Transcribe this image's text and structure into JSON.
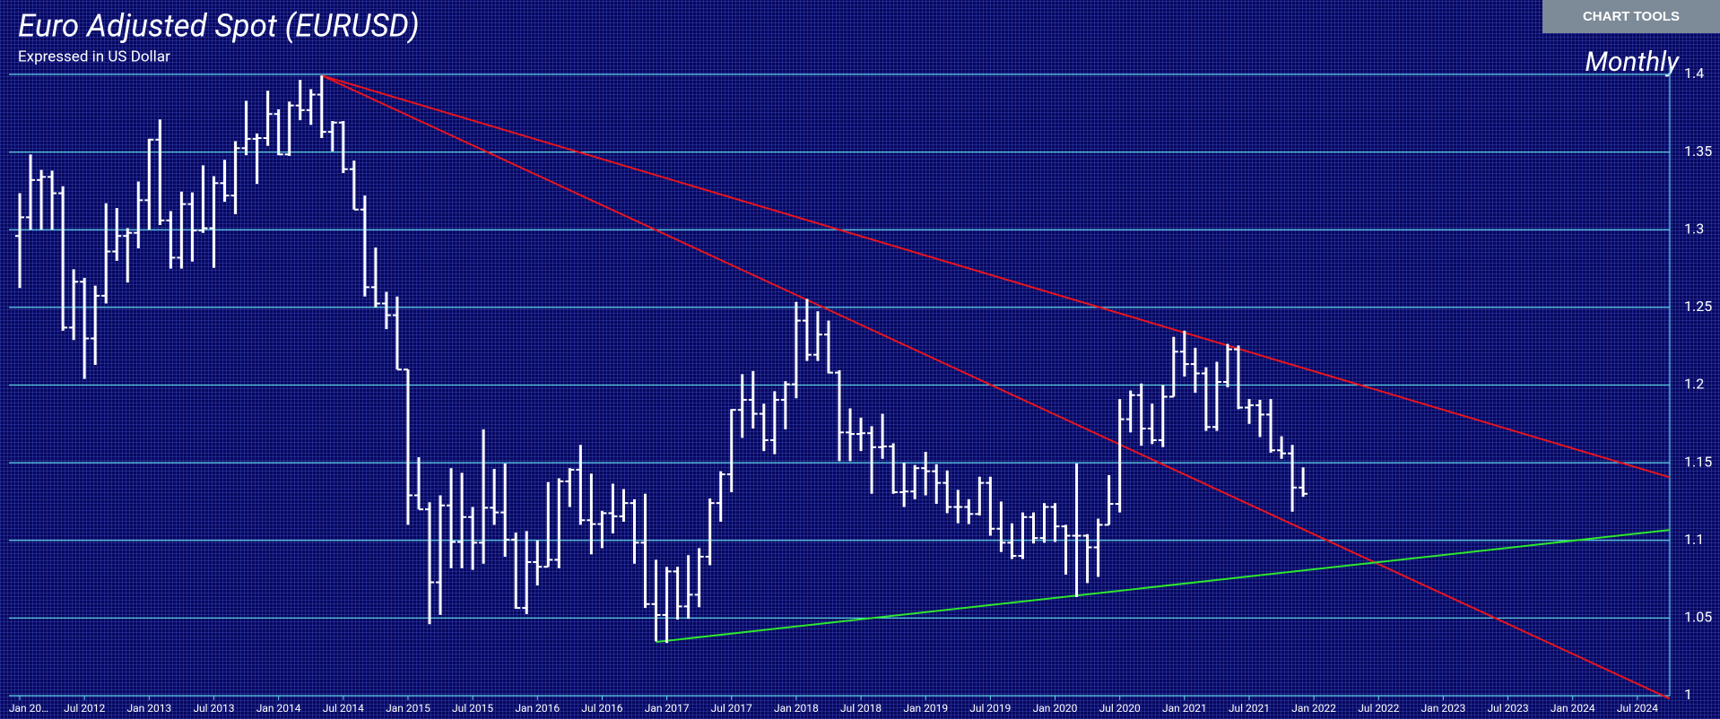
{
  "chart_data": {
    "type": "ohlc",
    "title": "Euro Adjusted Spot (EURUSD)",
    "subtitle": "Expressed in US Dollar",
    "period": "Monthly",
    "color": "#ffffff",
    "grid": true,
    "grid_color": "#5fd3e6",
    "x": [
      "Jan 2012",
      "Feb 2012",
      "Mar 2012",
      "Apr 2012",
      "May 2012",
      "Jun 2012",
      "Jul 2012",
      "Aug 2012",
      "Sep 2012",
      "Oct 2012",
      "Nov 2012",
      "Dec 2012",
      "Jan 2013",
      "Feb 2013",
      "Mar 2013",
      "Apr 2013",
      "May 2013",
      "Jun 2013",
      "Jul 2013",
      "Aug 2013",
      "Sep 2013",
      "Oct 2013",
      "Nov 2013",
      "Dec 2013",
      "Jan 2014",
      "Feb 2014",
      "Mar 2014",
      "Apr 2014",
      "May 2014",
      "Jun 2014",
      "Jul 2014",
      "Aug 2014",
      "Sep 2014",
      "Oct 2014",
      "Nov 2014",
      "Dec 2014",
      "Jan 2015",
      "Feb 2015",
      "Mar 2015",
      "Apr 2015",
      "May 2015",
      "Jun 2015",
      "Jul 2015",
      "Aug 2015",
      "Sep 2015",
      "Oct 2015",
      "Nov 2015",
      "Dec 2015",
      "Jan 2016",
      "Feb 2016",
      "Mar 2016",
      "Apr 2016",
      "May 2016",
      "Jun 2016",
      "Jul 2016",
      "Aug 2016",
      "Sep 2016",
      "Oct 2016",
      "Nov 2016",
      "Dec 2016",
      "Jan 2017",
      "Feb 2017",
      "Mar 2017",
      "Apr 2017",
      "May 2017",
      "Jun 2017",
      "Jul 2017",
      "Aug 2017",
      "Sep 2017",
      "Oct 2017",
      "Nov 2017",
      "Dec 2017",
      "Jan 2018",
      "Feb 2018",
      "Mar 2018",
      "Apr 2018",
      "May 2018",
      "Jun 2018",
      "Jul 2018",
      "Aug 2018",
      "Sep 2018",
      "Oct 2018",
      "Nov 2018",
      "Dec 2018",
      "Jan 2019",
      "Feb 2019",
      "Mar 2019",
      "Apr 2019",
      "May 2019",
      "Jun 2019",
      "Jul 2019",
      "Aug 2019",
      "Sep 2019",
      "Oct 2019",
      "Nov 2019",
      "Dec 2019",
      "Jan 2020",
      "Feb 2020",
      "Mar 2020",
      "Apr 2020",
      "May 2020",
      "Jun 2020",
      "Jul 2020",
      "Aug 2020",
      "Sep 2020",
      "Oct 2020",
      "Nov 2020",
      "Dec 2020",
      "Jan 2021",
      "Feb 2021",
      "Mar 2021",
      "Apr 2021",
      "May 2021",
      "Jun 2021",
      "Jul 2021",
      "Aug 2021",
      "Sep 2021",
      "Oct 2021",
      "Nov 2021",
      "Dec 2021"
    ],
    "open": [
      1.296,
      1.308,
      1.332,
      1.334,
      1.3235,
      1.237,
      1.2665,
      1.23,
      1.2575,
      1.286,
      1.296,
      1.298,
      1.319,
      1.358,
      1.306,
      1.282,
      1.3165,
      1.2995,
      1.301,
      1.33,
      1.322,
      1.3525,
      1.3585,
      1.359,
      1.3745,
      1.3485,
      1.38,
      1.377,
      1.387,
      1.363,
      1.369,
      1.339,
      1.313,
      1.263,
      1.2525,
      1.245,
      1.21,
      1.129,
      1.12,
      1.073,
      1.1225,
      1.099,
      1.115,
      1.0985,
      1.121,
      1.118,
      1.1005,
      1.0565,
      1.086,
      1.083,
      1.0875,
      1.138,
      1.1455,
      1.113,
      1.1105,
      1.1175,
      1.1155,
      1.124,
      1.0985,
      1.059,
      1.052,
      1.08,
      1.0575,
      1.065,
      1.0895,
      1.124,
      1.1425,
      1.184,
      1.1905,
      1.1815,
      1.1645,
      1.1905,
      1.2005,
      1.2415,
      1.2195,
      1.2325,
      1.208,
      1.1695,
      1.1685,
      1.169,
      1.16,
      1.1605,
      1.131,
      1.1315,
      1.1465,
      1.1445,
      1.137,
      1.1215,
      1.1215,
      1.117,
      1.137,
      1.1075,
      1.0985,
      1.09,
      1.115,
      1.1015,
      1.1215,
      1.109,
      1.103,
      1.103,
      1.0955,
      1.11,
      1.1235,
      1.178,
      1.1935,
      1.172,
      1.1645,
      1.1925,
      1.2215,
      1.2135,
      1.2075,
      1.173,
      1.202,
      1.223,
      1.1855,
      1.187,
      1.181,
      1.158,
      1.156,
      1.134
    ],
    "high": [
      1.3235,
      1.3485,
      1.3385,
      1.338,
      1.328,
      1.2745,
      1.269,
      1.264,
      1.317,
      1.314,
      1.301,
      1.331,
      1.3585,
      1.371,
      1.312,
      1.3245,
      1.324,
      1.3415,
      1.3345,
      1.345,
      1.357,
      1.383,
      1.362,
      1.3895,
      1.3775,
      1.3825,
      1.3965,
      1.3905,
      1.3993,
      1.37,
      1.37,
      1.3445,
      1.322,
      1.2885,
      1.26,
      1.257,
      1.21,
      1.1535,
      1.1245,
      1.129,
      1.1465,
      1.1435,
      1.1215,
      1.1715,
      1.146,
      1.1495,
      1.105,
      1.106,
      1.1,
      1.1375,
      1.14,
      1.1465,
      1.1615,
      1.143,
      1.119,
      1.1365,
      1.133,
      1.1265,
      1.13,
      1.0875,
      1.083,
      1.083,
      1.0905,
      1.095,
      1.127,
      1.1445,
      1.1845,
      1.207,
      1.209,
      1.188,
      1.196,
      1.2025,
      1.2535,
      1.2555,
      1.2475,
      1.2415,
      1.2095,
      1.185,
      1.179,
      1.1735,
      1.1815,
      1.1625,
      1.15,
      1.1485,
      1.157,
      1.149,
      1.145,
      1.1325,
      1.1265,
      1.141,
      1.141,
      1.125,
      1.111,
      1.118,
      1.118,
      1.124,
      1.124,
      1.11,
      1.1495,
      1.104,
      1.114,
      1.142,
      1.191,
      1.1965,
      1.201,
      1.188,
      1.2,
      1.231,
      1.235,
      1.224,
      1.2115,
      1.215,
      1.2265,
      1.2255,
      1.191,
      1.1905,
      1.191,
      1.167,
      1.1615,
      1.147
    ],
    "low": [
      1.2625,
      1.3,
      1.3,
      1.3,
      1.235,
      1.229,
      1.204,
      1.213,
      1.2525,
      1.28,
      1.266,
      1.288,
      1.3,
      1.303,
      1.275,
      1.275,
      1.2795,
      1.298,
      1.2755,
      1.318,
      1.31,
      1.348,
      1.3295,
      1.354,
      1.348,
      1.3475,
      1.3705,
      1.3675,
      1.359,
      1.3505,
      1.3365,
      1.313,
      1.257,
      1.25,
      1.236,
      1.21,
      1.11,
      1.12,
      1.046,
      1.052,
      1.082,
      1.082,
      1.081,
      1.085,
      1.11,
      1.0895,
      1.056,
      1.0525,
      1.071,
      1.083,
      1.082,
      1.1215,
      1.11,
      1.091,
      1.095,
      1.1045,
      1.112,
      1.085,
      1.0565,
      1.035,
      1.034,
      1.049,
      1.0495,
      1.057,
      1.084,
      1.112,
      1.131,
      1.166,
      1.172,
      1.1575,
      1.1555,
      1.1715,
      1.1915,
      1.2155,
      1.2155,
      1.2075,
      1.151,
      1.151,
      1.1575,
      1.13,
      1.1525,
      1.13,
      1.1215,
      1.1265,
      1.129,
      1.1235,
      1.1175,
      1.111,
      1.1105,
      1.116,
      1.103,
      1.0925,
      1.088,
      1.088,
      1.098,
      1.0985,
      1.099,
      1.078,
      1.0635,
      1.0725,
      1.0765,
      1.11,
      1.118,
      1.1695,
      1.161,
      1.162,
      1.16,
      1.1925,
      1.2055,
      1.195,
      1.1705,
      1.1705,
      1.1985,
      1.1845,
      1.175,
      1.1665,
      1.1565,
      1.1525,
      1.1185,
      1.128
    ],
    "close": [
      1.308,
      1.332,
      1.334,
      1.3235,
      1.237,
      1.2665,
      1.23,
      1.2575,
      1.286,
      1.296,
      1.298,
      1.319,
      1.358,
      1.306,
      1.282,
      1.3165,
      1.2995,
      1.301,
      1.33,
      1.322,
      1.3525,
      1.3585,
      1.359,
      1.3745,
      1.3485,
      1.38,
      1.377,
      1.387,
      1.363,
      1.369,
      1.339,
      1.313,
      1.263,
      1.2525,
      1.245,
      1.21,
      1.129,
      1.12,
      1.073,
      1.1225,
      1.099,
      1.115,
      1.0985,
      1.121,
      1.118,
      1.1005,
      1.0565,
      1.086,
      1.083,
      1.0875,
      1.138,
      1.1455,
      1.113,
      1.1105,
      1.1175,
      1.1155,
      1.124,
      1.0985,
      1.059,
      1.052,
      1.08,
      1.0575,
      1.065,
      1.0895,
      1.124,
      1.1425,
      1.184,
      1.1905,
      1.1815,
      1.1645,
      1.1905,
      1.2005,
      1.2415,
      1.2195,
      1.2325,
      1.208,
      1.1695,
      1.1685,
      1.169,
      1.16,
      1.1605,
      1.131,
      1.1315,
      1.1465,
      1.1445,
      1.137,
      1.1215,
      1.1215,
      1.117,
      1.137,
      1.1075,
      1.0985,
      1.09,
      1.115,
      1.1015,
      1.1215,
      1.109,
      1.103,
      1.103,
      1.0955,
      1.11,
      1.1235,
      1.178,
      1.1935,
      1.172,
      1.1645,
      1.1925,
      1.2215,
      1.2135,
      1.2075,
      1.173,
      1.202,
      1.223,
      1.1855,
      1.187,
      1.181,
      1.158,
      1.156,
      1.134,
      1.13
    ],
    "xlim": [
      "Dec 2011",
      "Oct 2024"
    ],
    "xticks": [
      {
        "value": "Jan 2012",
        "label": "Jan 20…"
      },
      "Jul 2012",
      "Jan 2013",
      "Jul 2013",
      "Jan 2014",
      "Jul 2014",
      "Jan 2015",
      "Jul 2015",
      "Jan 2016",
      "Jul 2016",
      "Jan 2017",
      "Jul 2017",
      "Jan 2018",
      "Jul 2018",
      "Jan 2019",
      "Jul 2019",
      "Jan 2020",
      "Jul 2020",
      "Jan 2021",
      "Jul 2021",
      "Jan 2022",
      "Jul 2022",
      "Jan 2023",
      "Jul 2023",
      "Jan 2024",
      "Jul 2024"
    ],
    "ylim": [
      1,
      1.4
    ],
    "yticks": [
      1,
      1.05,
      1.1,
      1.15,
      1.2,
      1.25,
      1.3,
      1.35,
      1.4
    ],
    "trendlines": [
      {
        "color": "#e8141e",
        "x": [
          "May 2014",
          "Oct 2024"
        ],
        "y": [
          1.3993,
          1.1406
        ]
      },
      {
        "color": "#e8141e",
        "x": [
          "May 2014",
          "Oct 2024"
        ],
        "y": [
          1.3993,
          0.998
        ]
      },
      {
        "color": "#2ee62e",
        "x": [
          "Dec 2016",
          "Oct 2024"
        ],
        "y": [
          1.0346,
          1.1067
        ]
      }
    ]
  },
  "toolbar": {
    "button": "CHART TOOLS"
  }
}
